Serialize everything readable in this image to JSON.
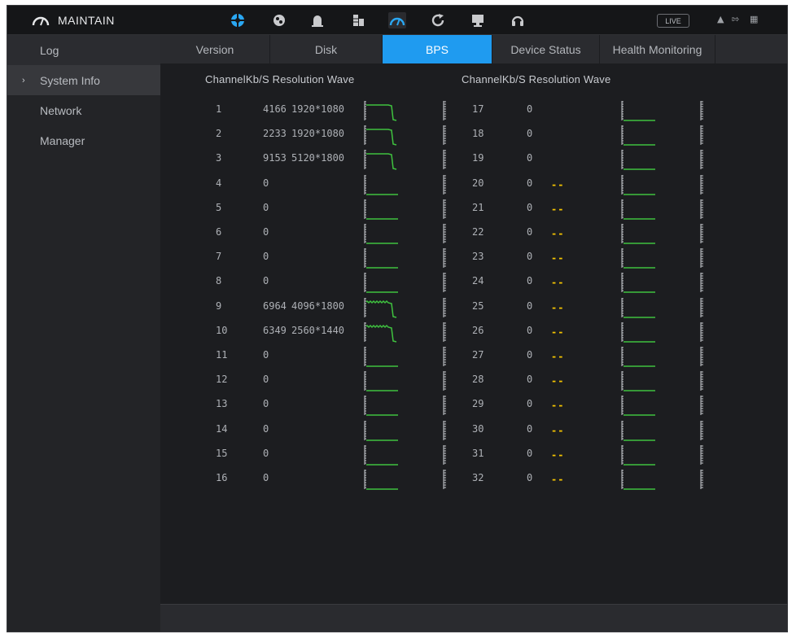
{
  "topbar": {
    "title": "MAINTAIN",
    "icons": [
      "network-icon",
      "intelligent-icon",
      "alarm-icon",
      "storage-icon",
      "maintain-icon",
      "backup-icon",
      "display-icon",
      "audio-icon"
    ],
    "live_label": "LIVE",
    "tray_icons": [
      "user-icon",
      "logout-icon",
      "grid-icon"
    ]
  },
  "sidebar": {
    "items": [
      {
        "label": "Log"
      },
      {
        "label": "System Info"
      },
      {
        "label": "Network"
      },
      {
        "label": "Manager"
      }
    ]
  },
  "tabs": [
    {
      "label": "Version"
    },
    {
      "label": "Disk"
    },
    {
      "label": "BPS"
    },
    {
      "label": "Device Status"
    },
    {
      "label": "Health Monitoring"
    }
  ],
  "headers": {
    "left": "ChannelKb/S Resolution Wave",
    "right": "ChannelKb/S Resolution Wave"
  },
  "colors": {
    "accent": "#1f9bf0",
    "wave": "#3fc23f",
    "dash": "#f5c400"
  },
  "channels_left": [
    {
      "ch": "1",
      "kbs": "4166",
      "res": "1920*1080",
      "wave": "active"
    },
    {
      "ch": "2",
      "kbs": "2233",
      "res": "1920*1080",
      "wave": "active"
    },
    {
      "ch": "3",
      "kbs": "9153",
      "res": "5120*1800",
      "wave": "active"
    },
    {
      "ch": "4",
      "kbs": "0",
      "res": "",
      "wave": "flat"
    },
    {
      "ch": "5",
      "kbs": "0",
      "res": "",
      "wave": "flat"
    },
    {
      "ch": "6",
      "kbs": "0",
      "res": "",
      "wave": "flat"
    },
    {
      "ch": "7",
      "kbs": "0",
      "res": "",
      "wave": "flat"
    },
    {
      "ch": "8",
      "kbs": "0",
      "res": "",
      "wave": "flat"
    },
    {
      "ch": "9",
      "kbs": "6964",
      "res": "4096*1800",
      "wave": "noisy"
    },
    {
      "ch": "10",
      "kbs": "6349",
      "res": "2560*1440",
      "wave": "noisy"
    },
    {
      "ch": "11",
      "kbs": "0",
      "res": "",
      "wave": "flat"
    },
    {
      "ch": "12",
      "kbs": "0",
      "res": "",
      "wave": "flat"
    },
    {
      "ch": "13",
      "kbs": "0",
      "res": "",
      "wave": "flat"
    },
    {
      "ch": "14",
      "kbs": "0",
      "res": "",
      "wave": "flat"
    },
    {
      "ch": "15",
      "kbs": "0",
      "res": "",
      "wave": "flat"
    },
    {
      "ch": "16",
      "kbs": "0",
      "res": "",
      "wave": "flat"
    }
  ],
  "channels_right": [
    {
      "ch": "17",
      "kbs": "0",
      "res": "",
      "wave": "flat"
    },
    {
      "ch": "18",
      "kbs": "0",
      "res": "",
      "wave": "flat"
    },
    {
      "ch": "19",
      "kbs": "0",
      "res": "",
      "wave": "flat"
    },
    {
      "ch": "20",
      "kbs": "0",
      "res": "--",
      "wave": "flat"
    },
    {
      "ch": "21",
      "kbs": "0",
      "res": "--",
      "wave": "flat"
    },
    {
      "ch": "22",
      "kbs": "0",
      "res": "--",
      "wave": "flat"
    },
    {
      "ch": "23",
      "kbs": "0",
      "res": "--",
      "wave": "flat"
    },
    {
      "ch": "24",
      "kbs": "0",
      "res": "--",
      "wave": "flat"
    },
    {
      "ch": "25",
      "kbs": "0",
      "res": "--",
      "wave": "flat"
    },
    {
      "ch": "26",
      "kbs": "0",
      "res": "--",
      "wave": "flat"
    },
    {
      "ch": "27",
      "kbs": "0",
      "res": "--",
      "wave": "flat"
    },
    {
      "ch": "28",
      "kbs": "0",
      "res": "--",
      "wave": "flat"
    },
    {
      "ch": "29",
      "kbs": "0",
      "res": "--",
      "wave": "flat"
    },
    {
      "ch": "30",
      "kbs": "0",
      "res": "--",
      "wave": "flat"
    },
    {
      "ch": "31",
      "kbs": "0",
      "res": "--",
      "wave": "flat"
    },
    {
      "ch": "32",
      "kbs": "0",
      "res": "--",
      "wave": "flat"
    }
  ]
}
